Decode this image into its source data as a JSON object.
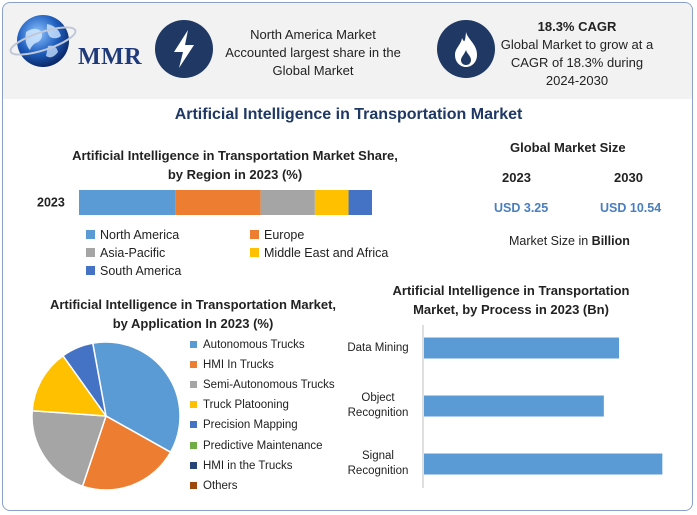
{
  "logo": {
    "text": "MMR",
    "icon": "globe-icon"
  },
  "highlights": [
    {
      "icon": "lightning-icon",
      "text": "North America Market Accounted largest share in the Global Market"
    },
    {
      "icon": "flame-icon",
      "title": "18.3% CAGR",
      "text": "Global Market to grow at a CAGR of 18.3% during 2024-2030"
    }
  ],
  "main_title": "Artificial Intelligence in Transportation Market",
  "market_size": {
    "title": "Global Market Size",
    "years": [
      "2023",
      "2030"
    ],
    "values": [
      "USD 3.25",
      "USD 10.54"
    ],
    "note_prefix": "Market Size in ",
    "note_unit": "Billion"
  },
  "colors": {
    "blue": "#5b9bd5",
    "orange": "#ed7d31",
    "gray": "#a5a5a5",
    "yellow": "#ffc000",
    "dark_blue": "#4472c4",
    "green": "#70ad47",
    "navy": "#264478",
    "brown": "#9e480e"
  },
  "chart_data": [
    {
      "type": "bar",
      "orientation": "horizontal-stacked",
      "title": "Artificial Intelligence in Transportation Market Share, by Region in 2023 (%)",
      "categories": [
        "2023"
      ],
      "series": [
        {
          "name": "North America",
          "values": [
            33
          ],
          "color": "#5b9bd5"
        },
        {
          "name": "Europe",
          "values": [
            29
          ],
          "color": "#ed7d31"
        },
        {
          "name": "Asia-Pacific",
          "values": [
            18.5
          ],
          "color": "#a5a5a5"
        },
        {
          "name": "Middle East and Africa",
          "values": [
            11.5
          ],
          "color": "#ffc000"
        },
        {
          "name": "South America",
          "values": [
            8
          ],
          "color": "#4472c4"
        }
      ],
      "legend": "bottom"
    },
    {
      "type": "pie",
      "title": "Artificial Intelligence in Transportation Market, by Application In 2023 (%)",
      "labels": [
        "Autonomous Trucks",
        "HMI In Trucks",
        "Semi-Autonomous Trucks",
        "Truck Platooning",
        "Precision Mapping",
        "Predictive Maintenance",
        "HMI in the Trucks",
        "Others"
      ],
      "values": [
        36,
        22,
        21,
        14,
        7,
        0,
        0,
        0
      ],
      "colors": [
        "#5b9bd5",
        "#ed7d31",
        "#a5a5a5",
        "#ffc000",
        "#4472c4",
        "#70ad47",
        "#264478",
        "#9e480e"
      ],
      "legend": "right"
    },
    {
      "type": "bar",
      "orientation": "horizontal",
      "title": "Artificial Intelligence in Transportation Market, by Process in 2023 (Bn)",
      "categories": [
        "Data Mining",
        "Object Recognition",
        "Signal Recognition"
      ],
      "values": [
        0.9,
        0.83,
        1.1
      ],
      "xlim": [
        0,
        1.2
      ],
      "color": "#5b9bd5"
    }
  ]
}
